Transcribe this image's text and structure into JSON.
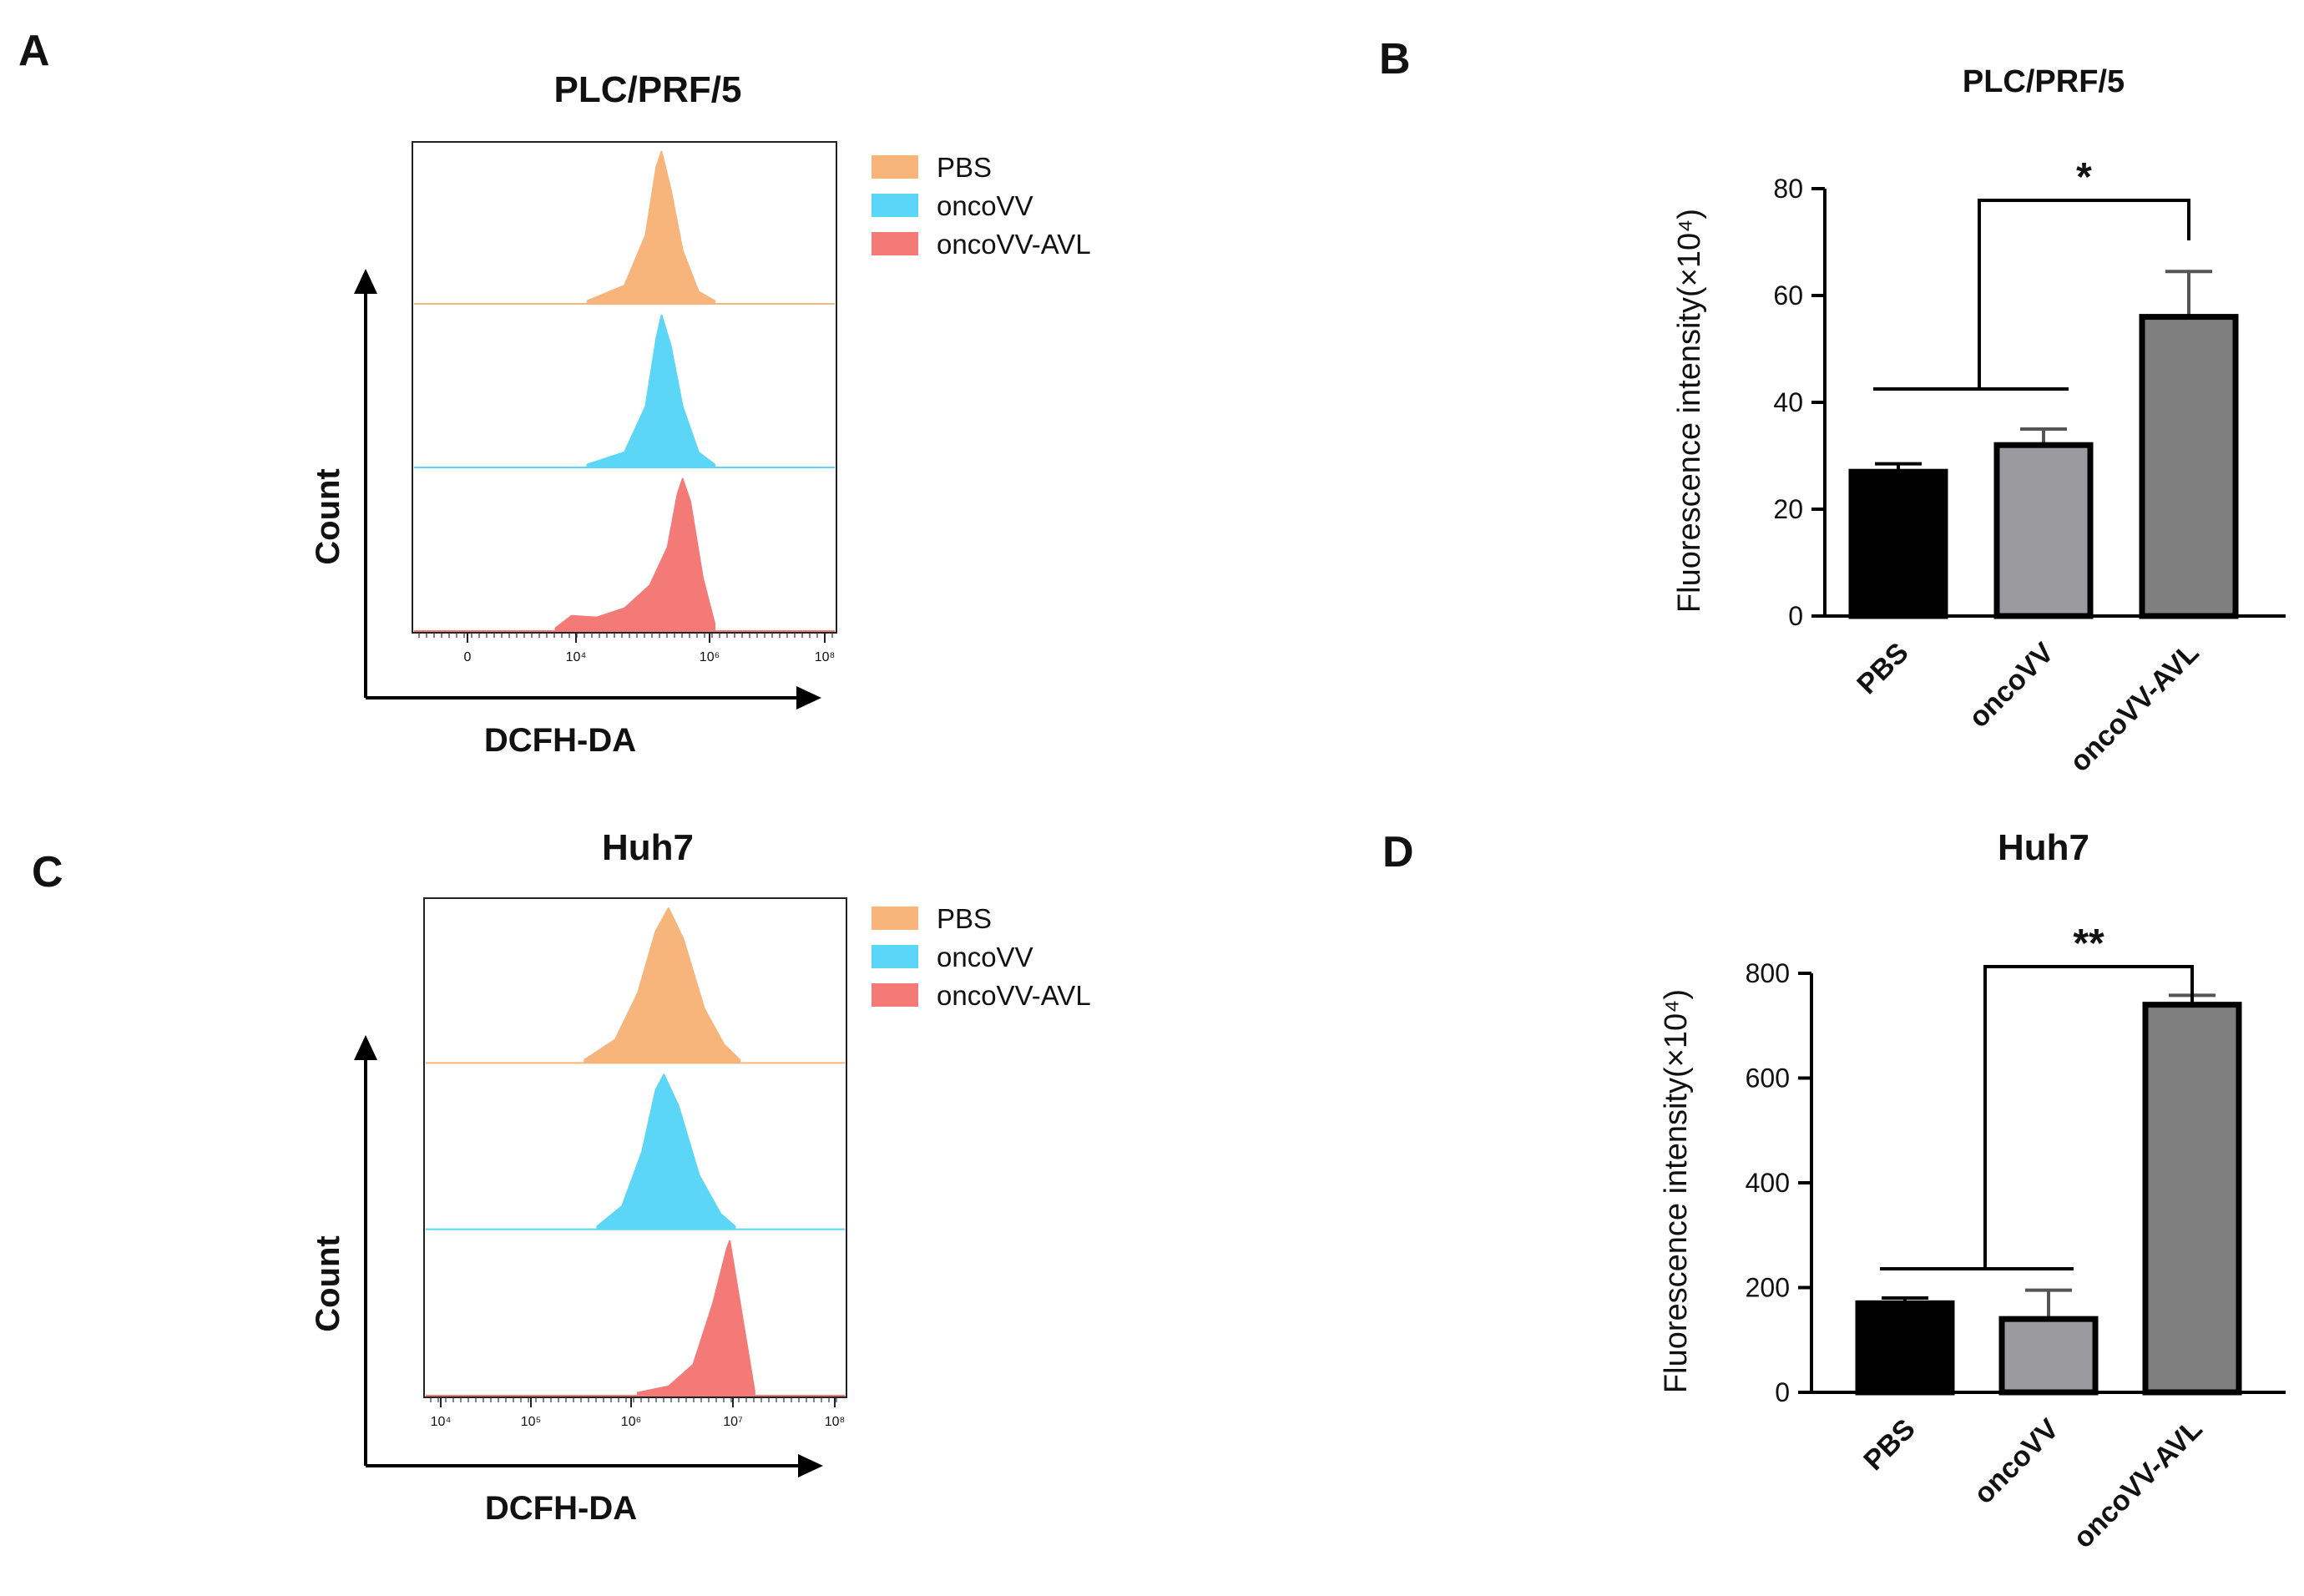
{
  "colors": {
    "PBS": "#F7B47B",
    "oncoVV": "#5BD6F6",
    "oncoVV-AVL": "#F47A78",
    "bar_PBS": "#000000",
    "bar_oncoVV": "#9B9B9F",
    "bar_oncoVV-AVL": "#7F7F7F"
  },
  "panels": {
    "A": {
      "label": "A",
      "title": "PLC/PRF/5",
      "xlabel": "DCFH-DA",
      "ylabel": "Count",
      "legend": [
        "PBS",
        "oncoVV",
        "oncoVV-AVL"
      ]
    },
    "B": {
      "label": "B",
      "title": "PLC/PRF/5",
      "ylabel": "Fluorescence intensity(×10⁴)",
      "significance": "*"
    },
    "C": {
      "label": "C",
      "title": "Huh7",
      "xlabel": "DCFH-DA",
      "ylabel": "Count",
      "legend": [
        "PBS",
        "oncoVV",
        "oncoVV-AVL"
      ]
    },
    "D": {
      "label": "D",
      "title": "Huh7",
      "ylabel": "Fluorescence intensity(×10⁴)",
      "significance": "**"
    }
  },
  "chart_data": [
    {
      "panel": "A",
      "type": "area",
      "title": "PLC/PRF/5",
      "xlabel": "DCFH-DA",
      "ylabel": "Count",
      "x_scale": "log",
      "x_ticks": [
        "0",
        "10⁴",
        "10⁶",
        "10⁸"
      ],
      "series": [
        {
          "name": "PBS",
          "peak_x": 100000,
          "shape": [
            [
              4000,
              0.02
            ],
            [
              20000,
              0.12
            ],
            [
              50000,
              0.45
            ],
            [
              80000,
              0.9
            ],
            [
              100000,
              1.0
            ],
            [
              150000,
              0.75
            ],
            [
              250000,
              0.35
            ],
            [
              500000,
              0.08
            ],
            [
              1000000,
              0.02
            ]
          ]
        },
        {
          "name": "oncoVV",
          "peak_x": 100000,
          "shape": [
            [
              4000,
              0.02
            ],
            [
              20000,
              0.1
            ],
            [
              50000,
              0.4
            ],
            [
              80000,
              0.85
            ],
            [
              100000,
              1.0
            ],
            [
              150000,
              0.8
            ],
            [
              250000,
              0.4
            ],
            [
              500000,
              0.1
            ],
            [
              1000000,
              0.02
            ]
          ]
        },
        {
          "name": "oncoVV-AVL",
          "peak_x": 250000,
          "shape": [
            [
              1000,
              0.02
            ],
            [
              2000,
              0.1
            ],
            [
              6000,
              0.09
            ],
            [
              20000,
              0.15
            ],
            [
              60000,
              0.3
            ],
            [
              130000,
              0.55
            ],
            [
              200000,
              0.9
            ],
            [
              250000,
              1.0
            ],
            [
              350000,
              0.85
            ],
            [
              600000,
              0.35
            ],
            [
              1000000,
              0.05
            ]
          ]
        }
      ]
    },
    {
      "panel": "B",
      "type": "bar",
      "title": "PLC/PRF/5",
      "ylabel": "Fluorescence intensity(×10⁴)",
      "categories": [
        "PBS",
        "oncoVV",
        "oncoVV-AVL"
      ],
      "values": [
        27,
        32,
        56
      ],
      "errors": [
        1.5,
        3,
        8.5
      ],
      "ylim": [
        0,
        80
      ],
      "yticks": [
        0,
        20,
        40,
        60,
        80
      ],
      "comparison": {
        "group": [
          "PBS",
          "oncoVV"
        ],
        "vs": "oncoVV-AVL",
        "label": "*"
      }
    },
    {
      "panel": "C",
      "type": "area",
      "title": "Huh7",
      "xlabel": "DCFH-DA",
      "ylabel": "Count",
      "x_scale": "log",
      "x_ticks": [
        "10⁴",
        "10⁵",
        "10⁶",
        "10⁷",
        "10⁸"
      ],
      "series": [
        {
          "name": "PBS",
          "peak_x": 2000000,
          "shape": [
            [
              300000,
              0.02
            ],
            [
              600000,
              0.15
            ],
            [
              1000000,
              0.45
            ],
            [
              1500000,
              0.85
            ],
            [
              2000000,
              1.0
            ],
            [
              2800000,
              0.8
            ],
            [
              4500000,
              0.35
            ],
            [
              7000000,
              0.12
            ],
            [
              10000000,
              0.02
            ]
          ]
        },
        {
          "name": "oncoVV",
          "peak_x": 1800000,
          "shape": [
            [
              400000,
              0.02
            ],
            [
              700000,
              0.15
            ],
            [
              1100000,
              0.5
            ],
            [
              1500000,
              0.9
            ],
            [
              1800000,
              1.0
            ],
            [
              2500000,
              0.8
            ],
            [
              4000000,
              0.35
            ],
            [
              6500000,
              0.1
            ],
            [
              9000000,
              0.02
            ]
          ]
        },
        {
          "name": "oncoVV-AVL",
          "peak_x": 8000000,
          "shape": [
            [
              1000000,
              0.02
            ],
            [
              2000000,
              0.06
            ],
            [
              3500000,
              0.2
            ],
            [
              5500000,
              0.6
            ],
            [
              7500000,
              0.95
            ],
            [
              8000000,
              1.0
            ],
            [
              9500000,
              0.7
            ],
            [
              12000000,
              0.3
            ],
            [
              14000000,
              0.03
            ]
          ]
        }
      ]
    },
    {
      "panel": "D",
      "type": "bar",
      "title": "Huh7",
      "ylabel": "Fluorescence intensity(×10⁴)",
      "categories": [
        "PBS",
        "oncoVV",
        "oncoVV-AVL"
      ],
      "values": [
        170,
        140,
        740
      ],
      "errors": [
        10,
        55,
        18
      ],
      "ylim": [
        0,
        800
      ],
      "yticks": [
        0,
        200,
        400,
        600,
        800
      ],
      "comparison": {
        "group": [
          "PBS",
          "oncoVV"
        ],
        "vs": "oncoVV-AVL",
        "label": "**"
      }
    }
  ]
}
